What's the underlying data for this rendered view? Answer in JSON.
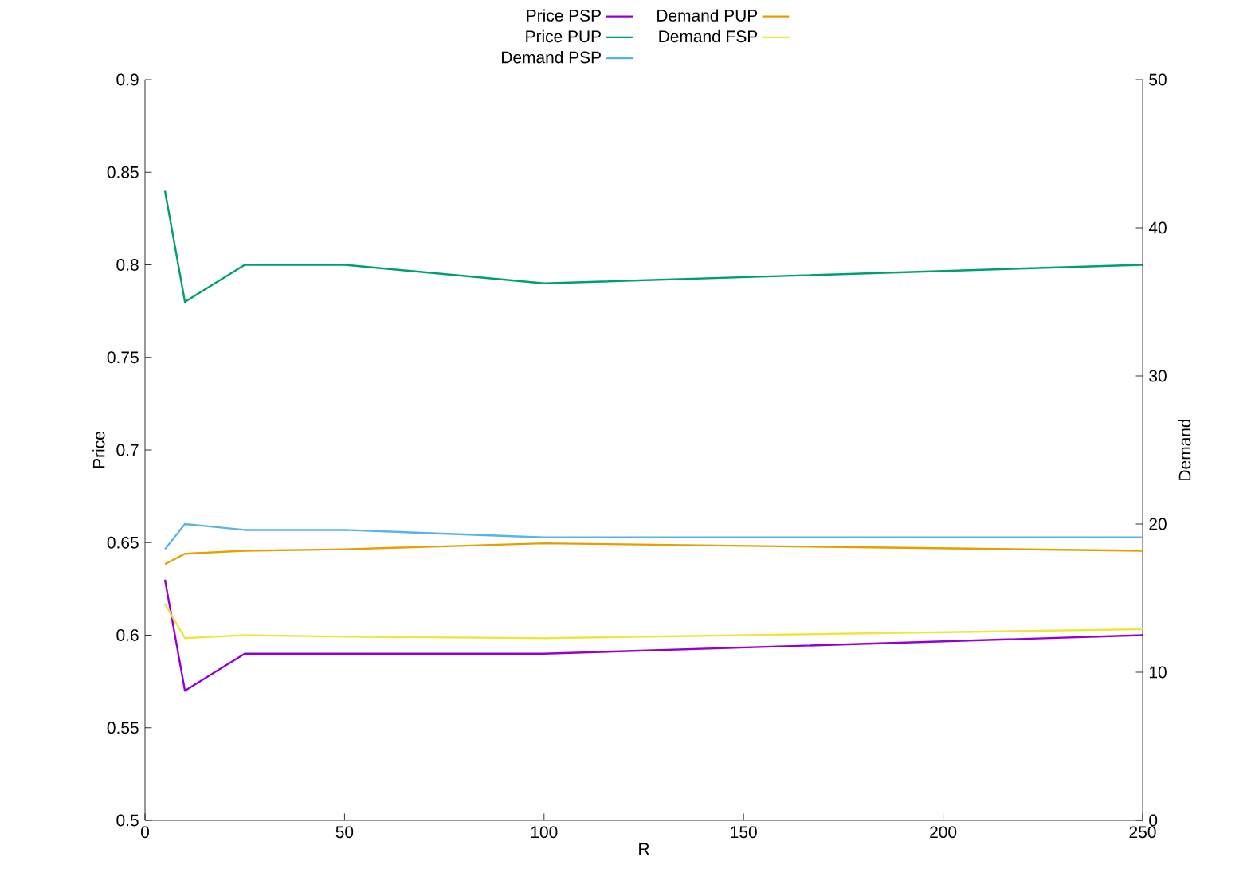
{
  "chart_data": {
    "type": "line",
    "xlabel": "R",
    "ylabel": "Price",
    "y2label": "Demand",
    "legend": "top",
    "x": [
      5,
      10,
      25,
      50,
      100,
      250
    ],
    "xlim": [
      0,
      250
    ],
    "xticks": [
      0,
      50,
      100,
      150,
      200,
      250
    ],
    "ylim": [
      0.5,
      0.9
    ],
    "yticks": [
      0.5,
      0.55,
      0.6,
      0.65,
      0.7,
      0.75,
      0.8,
      0.85,
      0.9
    ],
    "y2lim": [
      0,
      50
    ],
    "y2ticks": [
      0,
      10,
      20,
      30,
      40,
      50
    ],
    "series": [
      {
        "name": "Price PSP",
        "color": "#9400d3",
        "values": [
          0.63,
          0.57,
          0.59,
          0.59,
          0.59,
          0.6
        ]
      },
      {
        "name": "Price PUP",
        "color": "#009e73",
        "values": [
          0.84,
          0.78,
          0.8,
          0.8,
          0.79,
          0.8
        ]
      },
      {
        "name": "Demand PSP",
        "color": "#56b4e9",
        "axis": "y2",
        "values": [
          18.3,
          20.0,
          19.6,
          19.6,
          19.1,
          19.1
        ]
      },
      {
        "name": "Demand PUP",
        "color": "#e69f00",
        "axis": "y2",
        "values": [
          17.3,
          18.0,
          18.2,
          18.3,
          18.7,
          18.2
        ]
      },
      {
        "name": "Demand FSP",
        "color": "#f0e442",
        "axis": "y2",
        "values": [
          14.6,
          12.3,
          12.5,
          12.4,
          12.3,
          12.9
        ]
      }
    ]
  }
}
